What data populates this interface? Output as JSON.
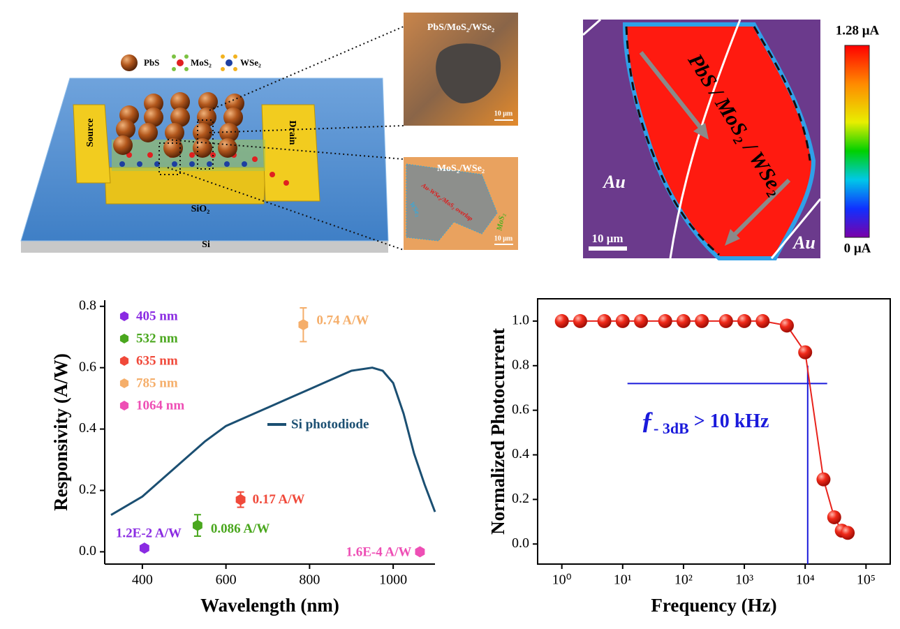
{
  "schematic": {
    "legend": [
      "PbS",
      "MoS₂",
      "WSe₂"
    ],
    "source": "Source",
    "drain": "Drain",
    "substrate_top": "SiO₂",
    "substrate": "Si",
    "inset_top": {
      "title": "PbS/MoS₂/WSe₂",
      "scale": "10 μm"
    },
    "inset_bottom": {
      "title": "MoS₂/WSe₂",
      "overlap": "Au-WSe₂/MoS₂ overlap",
      "wse2": "WSe₂",
      "mos2": "MoS₂",
      "scale": "10 μm"
    }
  },
  "photocurrent_map": {
    "label": "PbS / MoS₂ / WSe₂",
    "electrodes": [
      "Au",
      "Au"
    ],
    "scale": "10 μm",
    "colorbar_max": "1.28 μA",
    "colorbar_min": "0 μA"
  },
  "chart_data": [
    {
      "type": "scatter",
      "x_label": "Wavelength (nm)",
      "y_label": "Responsivity (A/W)",
      "xlim": [
        310,
        1100
      ],
      "xticks": [
        400,
        600,
        800,
        1000
      ],
      "ylim": [
        -0.04,
        0.82
      ],
      "yticks": [
        {
          "value": 0,
          "label": "0.0"
        },
        0.2,
        0.4,
        0.6,
        0.8
      ],
      "series": [
        {
          "name": "405 nm",
          "mode": "marker",
          "color": "#8a2be2",
          "x": [
            405
          ],
          "values": [
            0.012
          ],
          "errors": [
            0.005
          ],
          "value_labels": [
            "1.2E-2 A/W"
          ]
        },
        {
          "name": "532 nm",
          "mode": "marker",
          "color": "#4aa71e",
          "x": [
            532
          ],
          "values": [
            0.086
          ],
          "errors": [
            0.035
          ],
          "value_labels": [
            "0.086 A/W"
          ]
        },
        {
          "name": "635 nm",
          "mode": "marker",
          "color": "#f0493a",
          "x": [
            635
          ],
          "values": [
            0.17
          ],
          "errors": [
            0.025
          ],
          "value_labels": [
            "0.17 A/W"
          ]
        },
        {
          "name": "785 nm",
          "mode": "marker",
          "color": "#f5ae6a",
          "x": [
            785
          ],
          "values": [
            0.74
          ],
          "errors": [
            0.055
          ],
          "value_labels": [
            "0.74 A/W"
          ]
        },
        {
          "name": "1064 nm",
          "mode": "marker",
          "color": "#ee4fb5",
          "x": [
            1064
          ],
          "values": [
            0.00016
          ],
          "errors": [
            0.005
          ],
          "value_labels": [
            "1.6E-4 A/W"
          ]
        },
        {
          "name": "Si photodiode",
          "mode": "line",
          "color": "#1b4f72",
          "x": [
            325,
            400,
            450,
            500,
            550,
            600,
            650,
            700,
            750,
            800,
            850,
            900,
            950,
            975,
            1000,
            1025,
            1050,
            1075,
            1100
          ],
          "values": [
            0.12,
            0.18,
            0.24,
            0.3,
            0.36,
            0.41,
            0.44,
            0.47,
            0.5,
            0.53,
            0.56,
            0.59,
            0.6,
            0.59,
            0.55,
            0.45,
            0.32,
            0.22,
            0.13
          ]
        }
      ]
    },
    {
      "type": "line",
      "x_label": "Frequency (Hz)",
      "y_label": "Normalized Photocurrent",
      "log_x": true,
      "xlim": [
        0.4,
        250000
      ],
      "xticks": [
        {
          "value": 1,
          "label": "10⁰"
        },
        {
          "value": 10,
          "label": "10¹"
        },
        {
          "value": 100,
          "label": "10²"
        },
        {
          "value": 1000,
          "label": "10³"
        },
        {
          "value": 10000,
          "label": "10⁴"
        },
        {
          "value": 100000,
          "label": "10⁵"
        }
      ],
      "ylim": [
        -0.09,
        1.1
      ],
      "yticks": [
        {
          "value": 0,
          "label": "0.0"
        },
        0.2,
        0.4,
        0.6,
        0.8,
        {
          "value": 1,
          "label": "1.0"
        }
      ],
      "series": [
        {
          "color": "#e8231c",
          "x": [
            1,
            2,
            5,
            10,
            20,
            50,
            100,
            200,
            500,
            1000,
            2000,
            5000,
            10000,
            20000,
            30000,
            40000,
            50000
          ],
          "values": [
            1,
            1,
            1,
            1,
            1,
            1,
            1,
            1,
            1,
            1,
            1,
            0.98,
            0.86,
            0.29,
            0.12,
            0.06,
            0.05
          ]
        }
      ],
      "reference_color": "#1a1adb",
      "reference_lines": [
        {
          "orientation": "horizontal",
          "value": 0.72,
          "range": [
            12,
            23000
          ]
        },
        {
          "orientation": "vertical",
          "value": 11000,
          "range": [
            -0.09,
            0.8
          ]
        }
      ],
      "annotation": {
        "symbol": "ƒ",
        "subscript": "- 3dB",
        "text": " > 10 kHz"
      }
    }
  ]
}
